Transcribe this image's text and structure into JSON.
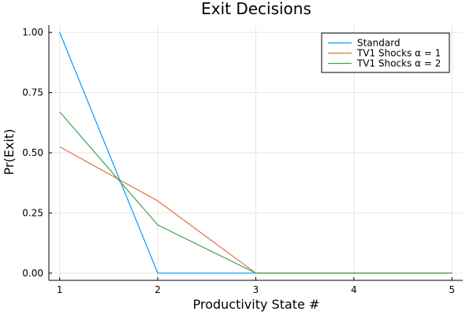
{
  "chart_data": {
    "type": "line",
    "title": "Exit Decisions",
    "xlabel": "Productivity State #",
    "ylabel": "Pr(Exit)",
    "x": [
      1,
      2,
      3,
      4,
      5
    ],
    "xticks": [
      1,
      2,
      3,
      4,
      5
    ],
    "xtick_labels": [
      "1",
      "2",
      "3",
      "4",
      "5"
    ],
    "yticks": [
      0,
      0.25,
      0.5,
      0.75,
      1.0
    ],
    "ytick_labels": [
      "0.00",
      "0.25",
      "0.50",
      "0.75",
      "1.00"
    ],
    "xlim": [
      0.89,
      5.11
    ],
    "ylim": [
      -0.03,
      1.03
    ],
    "grid": true,
    "legend_position": "top-right",
    "series": [
      {
        "name": "Standard",
        "color": "#009AFA",
        "values": [
          1.0,
          0.0,
          0.0,
          0.0,
          0.0
        ]
      },
      {
        "name": "TV1 Shocks α = 1",
        "color": "#E36F47",
        "values": [
          0.525,
          0.3,
          0.0,
          0.0,
          0.0
        ]
      },
      {
        "name": "TV1 Shocks α = 2",
        "color": "#3EA44E",
        "values": [
          0.67,
          0.2,
          0.0,
          0.0,
          0.0
        ]
      }
    ]
  }
}
